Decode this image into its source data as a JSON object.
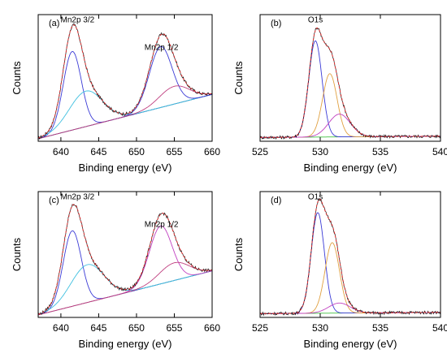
{
  "chart_data": [
    {
      "type": "line",
      "panel_label": "(a)",
      "xlabel": "Binding energy (eV)",
      "ylabel": "Counts",
      "xlim": [
        637,
        660
      ],
      "ylim": [
        0,
        1
      ],
      "xticks": [
        640,
        645,
        650,
        655,
        660
      ],
      "grid": false,
      "annotations": [
        {
          "text": "Mn2p 3/2",
          "x": 642.2,
          "y": 0.94
        },
        {
          "text": "Mn2p 1/2",
          "x": 653.3,
          "y": 0.72
        }
      ],
      "peaks": [
        {
          "center": 641.5,
          "height": 0.62,
          "width": 1.2,
          "color": "#3b3bd6"
        },
        {
          "center": 643.3,
          "height": 0.28,
          "width": 2.2,
          "color": "#40c0e0"
        },
        {
          "center": 653.2,
          "height": 0.48,
          "width": 1.5,
          "color": "#3b3bd6"
        },
        {
          "center": 655.0,
          "height": 0.14,
          "width": 2.0,
          "color": "#c04080"
        }
      ],
      "background": {
        "start": 0.02,
        "end": 0.37
      }
    },
    {
      "type": "line",
      "panel_label": "(b)",
      "xlabel": "Binding energy (eV)",
      "ylabel": "Counts",
      "xlim": [
        525,
        540
      ],
      "ylim": [
        0,
        1
      ],
      "xticks": [
        525,
        530,
        535,
        540
      ],
      "grid": false,
      "annotations": [
        {
          "text": "O1s",
          "x": 529.6,
          "y": 0.94
        }
      ],
      "peaks": [
        {
          "center": 529.6,
          "height": 0.76,
          "width": 0.55,
          "color": "#3b3bd6"
        },
        {
          "center": 530.8,
          "height": 0.5,
          "width": 0.6,
          "color": "#e0a040"
        },
        {
          "center": 531.6,
          "height": 0.18,
          "width": 0.9,
          "color": "#c040c0"
        }
      ],
      "background": {
        "start": 0.03,
        "end": 0.04
      }
    },
    {
      "type": "line",
      "panel_label": "(c)",
      "xlabel": "Binding energy (eV)",
      "ylabel": "Counts",
      "xlim": [
        637,
        660
      ],
      "ylim": [
        0,
        1
      ],
      "xticks": [
        640,
        645,
        650,
        655,
        660
      ],
      "grid": false,
      "annotations": [
        {
          "text": "Mn2p 3/2",
          "x": 642.2,
          "y": 0.94
        },
        {
          "text": "Mn2p 1/2",
          "x": 653.3,
          "y": 0.72
        }
      ],
      "peaks": [
        {
          "center": 641.5,
          "height": 0.6,
          "width": 1.2,
          "color": "#3b3bd6"
        },
        {
          "center": 643.5,
          "height": 0.3,
          "width": 2.2,
          "color": "#40c0e0"
        },
        {
          "center": 653.2,
          "height": 0.46,
          "width": 1.5,
          "color": "#c040c0"
        },
        {
          "center": 655.0,
          "height": 0.14,
          "width": 2.0,
          "color": "#c04080"
        }
      ],
      "background": {
        "start": 0.02,
        "end": 0.37
      }
    },
    {
      "type": "line",
      "panel_label": "(d)",
      "xlabel": "Binding energy (eV)",
      "ylabel": "Counts",
      "xlim": [
        525,
        540
      ],
      "ylim": [
        0,
        1
      ],
      "xticks": [
        525,
        530,
        535,
        540
      ],
      "grid": false,
      "annotations": [
        {
          "text": "O1s",
          "x": 529.6,
          "y": 0.94
        }
      ],
      "peaks": [
        {
          "center": 529.8,
          "height": 0.8,
          "width": 0.55,
          "color": "#3b3bd6"
        },
        {
          "center": 531.0,
          "height": 0.56,
          "width": 0.6,
          "color": "#e0a040"
        },
        {
          "center": 531.6,
          "height": 0.08,
          "width": 0.9,
          "color": "#c040c0"
        }
      ],
      "background": {
        "start": 0.03,
        "end": 0.04
      }
    }
  ]
}
